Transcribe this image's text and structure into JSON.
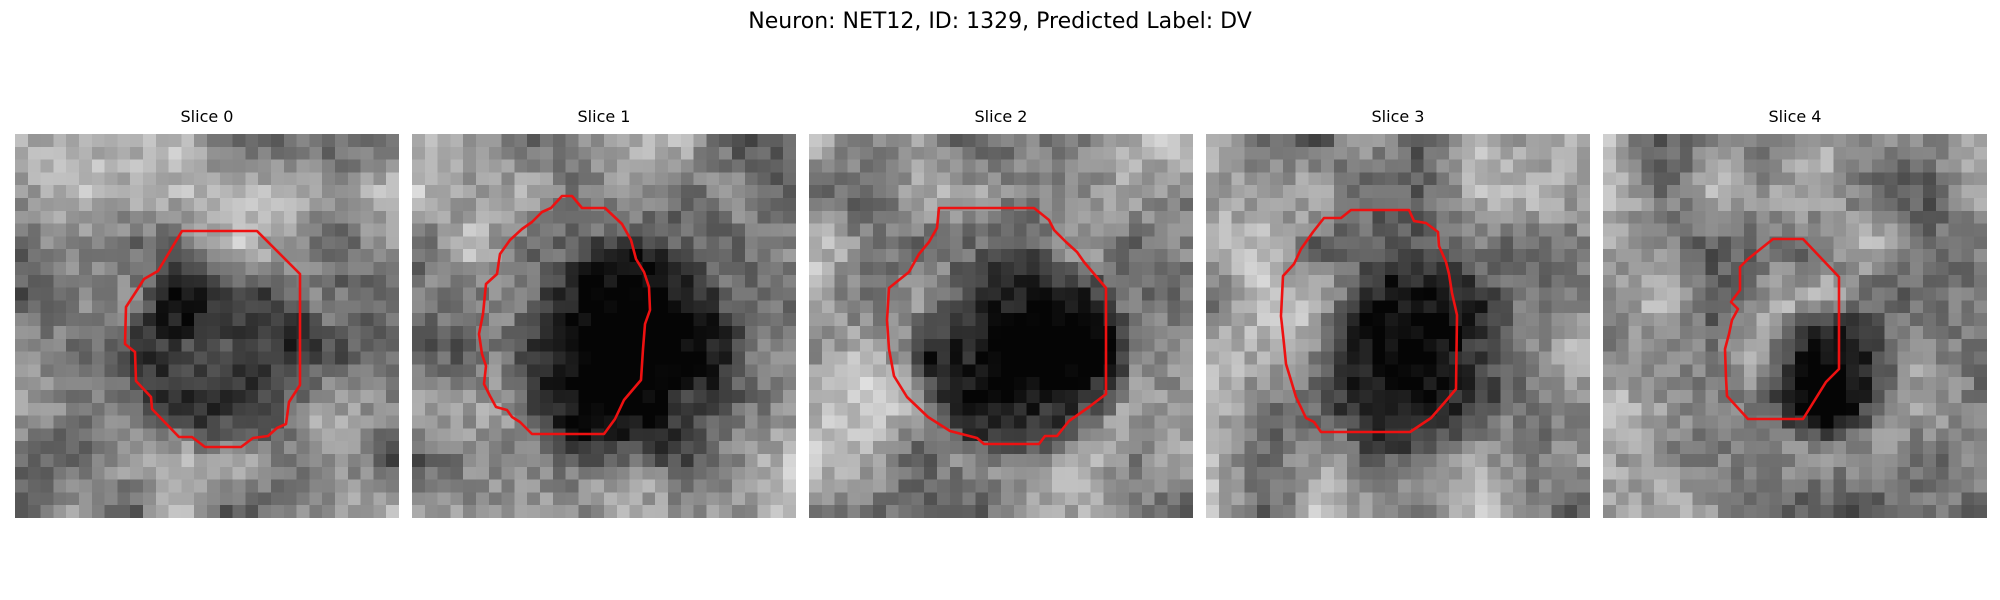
{
  "figure": {
    "title": "Neuron: NET12, ID: 1329, Predicted Label: DV"
  },
  "panels": [
    {
      "title": "Slice 0"
    },
    {
      "title": "Slice 1"
    },
    {
      "title": "Slice 2"
    },
    {
      "title": "Slice 3"
    },
    {
      "title": "Slice 4"
    }
  ],
  "colors": {
    "contour": "#ee1111",
    "background": "#ffffff"
  }
}
